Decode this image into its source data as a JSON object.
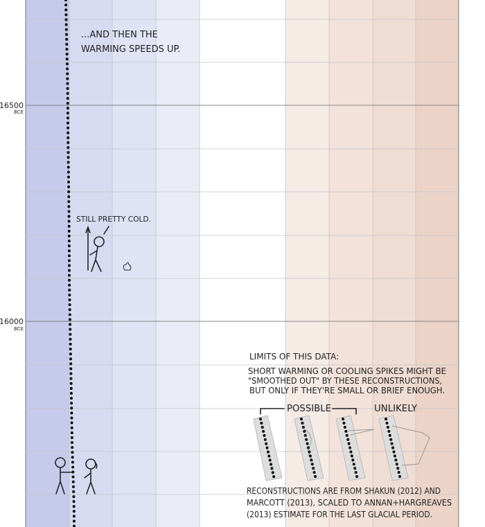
{
  "annotations": {
    "warming": [
      "...AND THEN THE",
      "WARMING SPEEDS UP."
    ],
    "cold": "STILL PRETTY COLD."
  },
  "time_labels": [
    {
      "year": "16500",
      "era": "BCE"
    },
    {
      "year": "16000",
      "era": "BCE"
    }
  ],
  "limits": {
    "title": "LIMITS OF THIS DATA:",
    "note": [
      "SHORT WARMING OR COOLING SPIKES MIGHT BE",
      "\"SMOOTHED OUT\" BY THESE RECONSTRUCTIONS,",
      "BUT ONLY IF THEY'RE SMALL OR BRIEF ENOUGH."
    ],
    "possible": "POSSIBLE",
    "unlikely": "UNLIKELY",
    "source": [
      "RECONSTRUCTIONS ARE FROM SHAKUN (2012) AND",
      "MARCOTT (2013), SCALED TO ANNAN+HARGREAVES",
      "(2013) ESTIMATE FOR THE LAST GLACIAL PERIOD."
    ]
  }
}
